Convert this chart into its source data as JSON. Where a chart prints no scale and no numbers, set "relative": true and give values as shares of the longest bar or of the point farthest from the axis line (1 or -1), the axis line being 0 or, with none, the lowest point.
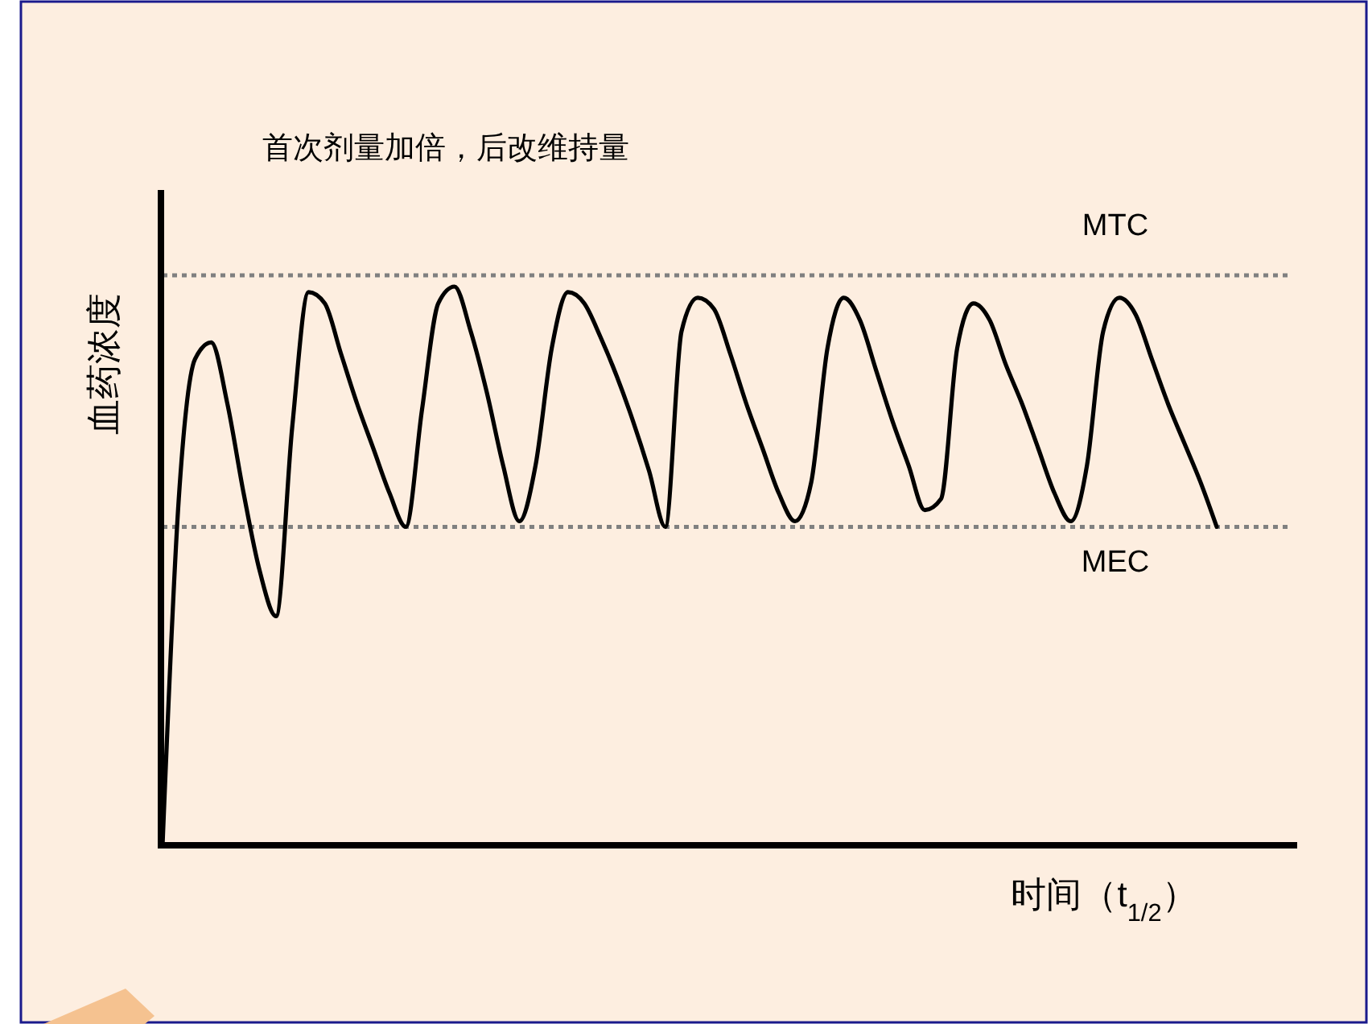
{
  "chart_data": {
    "type": "line",
    "relative": true,
    "title": "首次剂量加倍，后改维持量",
    "xlabel": "时间（t$_{1/2}$）",
    "ylabel": "血药浓度",
    "categories": [
      null,
      null,
      null,
      null,
      null,
      null,
      null,
      null,
      null,
      null,
      null,
      null,
      null,
      null,
      null,
      null,
      null,
      null,
      null,
      null,
      null,
      null,
      null,
      null,
      null,
      null,
      null,
      null,
      null,
      null,
      null,
      null,
      null,
      null,
      null,
      null,
      null,
      null,
      null,
      null,
      null,
      null,
      null,
      null,
      null,
      null,
      null,
      null,
      null,
      null,
      null,
      null,
      null,
      null,
      null,
      null,
      null,
      null,
      null,
      null,
      null,
      null,
      null,
      null,
      null,
      null
    ],
    "series": [
      {
        "color": "#000000",
        "values": [
          0,
          0.62,
          0.87,
          0.9,
          0.79,
          0.63,
          0.49,
          0.41,
          0.75,
          0.99,
          0.97,
          0.88,
          0.79,
          0.71,
          0.63,
          0.57,
          0.78,
          0.97,
          1,
          0.92,
          0.81,
          0.68,
          0.58,
          0.68,
          0.89,
          0.99,
          0.97,
          0.91,
          0.84,
          0.76,
          0.67,
          0.57,
          0.92,
          0.98,
          0.96,
          0.88,
          0.79,
          0.71,
          0.63,
          0.58,
          0.65,
          0.89,
          0.98,
          0.94,
          0.85,
          0.76,
          0.68,
          0.6,
          0.62,
          0.89,
          0.97,
          0.94,
          0.86,
          0.79,
          0.71,
          0.63,
          0.58,
          0.68,
          0.92,
          0.98,
          0.95,
          0.87,
          0.79,
          0.72,
          0.65,
          0.57
        ]
      }
    ],
    "ref_lines": [
      {
        "axis": "y",
        "value": 1.02,
        "label": "MTC",
        "color": "#808080",
        "line_style": "dotted"
      },
      {
        "axis": "y",
        "value": 0.57,
        "label": "MEC",
        "color": "#808080",
        "line_style": "dotted"
      }
    ]
  }
}
